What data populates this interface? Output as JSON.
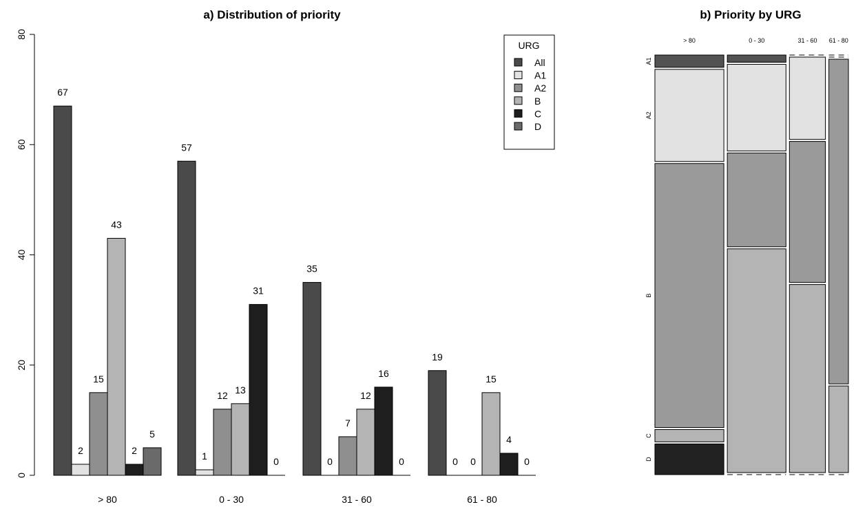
{
  "chart_data": [
    {
      "type": "bar",
      "title": "a) Distribution of priority",
      "xlabel": "",
      "ylabel": "",
      "ylim": [
        0,
        80
      ],
      "yticks": [
        "0",
        "20",
        "40",
        "60",
        "80"
      ],
      "categories": [
        "> 80",
        "0 - 30",
        "31 - 60",
        "61 - 80"
      ],
      "series": [
        {
          "name": "All",
          "color": "#4a4a4a",
          "values": [
            67,
            57,
            35,
            19
          ]
        },
        {
          "name": "A1",
          "color": "#e2e2e2",
          "values": [
            2,
            1,
            0,
            0
          ]
        },
        {
          "name": "A2",
          "color": "#8f8f8f",
          "values": [
            15,
            12,
            7,
            0
          ]
        },
        {
          "name": "B",
          "color": "#b4b4b4",
          "values": [
            43,
            13,
            12,
            15
          ]
        },
        {
          "name": "C",
          "color": "#1e1e1e",
          "values": [
            2,
            31,
            16,
            4
          ]
        },
        {
          "name": "D",
          "color": "#6a6a6a",
          "values": [
            5,
            0,
            0,
            0
          ]
        }
      ],
      "data_labels": [
        [
          "67",
          "2",
          "15",
          "43",
          "2",
          "5"
        ],
        [
          "57",
          "1",
          "12",
          "13",
          "31",
          "0"
        ],
        [
          "35",
          "0",
          "7",
          "12",
          "16",
          "0"
        ],
        [
          "19",
          "0",
          "0",
          "15",
          "4",
          "0"
        ]
      ],
      "legend": {
        "title": "URG",
        "placement": "top-right"
      },
      "grid": false
    },
    {
      "type": "mosaic",
      "title": "b) Priority by URG",
      "columns": [
        {
          "label": "> 80",
          "total": 67
        },
        {
          "label": "0 - 30",
          "total": 57
        },
        {
          "label": "31 - 60",
          "total": 35
        },
        {
          "label": "61 - 80",
          "total": 19
        }
      ],
      "rows": [
        "A1",
        "A2",
        "B",
        "C",
        "D"
      ],
      "row_colors": {
        "A1": "#525252",
        "A2": "#e2e2e2",
        "B": "#9a9a9a",
        "C": "#b4b4b4",
        "D": "#222222"
      },
      "counts": {
        "> 80": {
          "A1": 2,
          "A2": 15,
          "B": 43,
          "C": 2,
          "D": 5
        },
        "0 - 30": {
          "A1": 1,
          "A2": 12,
          "B": 13,
          "C": 31,
          "D": 0
        },
        "31 - 60": {
          "A1": 0,
          "A2": 7,
          "B": 12,
          "C": 16,
          "D": 0
        },
        "61 - 80": {
          "A1": 0,
          "A2": 0,
          "B": 15,
          "C": 4,
          "D": 0
        }
      },
      "grid": false
    }
  ]
}
